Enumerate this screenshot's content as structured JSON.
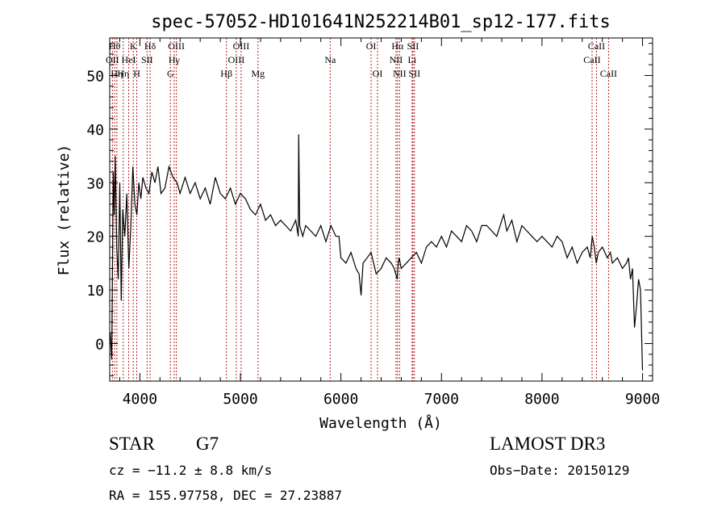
{
  "chart_data": {
    "type": "line",
    "title": "spec-57052-HD101641N252214B01_sp12-177.fits",
    "xlabel": "Wavelength (Å)",
    "ylabel": "Flux (relative)",
    "xlim": [
      3700,
      9100
    ],
    "ylim": [
      -7,
      57
    ],
    "xticks": [
      4000,
      5000,
      6000,
      7000,
      8000,
      9000
    ],
    "yticks": [
      0,
      10,
      20,
      30,
      40,
      50
    ],
    "grid": false,
    "line_color": "#000000",
    "marker_color": "#b22222",
    "series": [
      {
        "x": [
          3705,
          3720,
          3735,
          3745,
          3755,
          3770,
          3785,
          3800,
          3815,
          3830,
          3850,
          3870,
          3890,
          3910,
          3930,
          3950,
          3970,
          3990,
          4010,
          4030,
          4060,
          4090,
          4120,
          4150,
          4180,
          4210,
          4250,
          4290,
          4330,
          4370,
          4400,
          4450,
          4500,
          4550,
          4600,
          4650,
          4700,
          4750,
          4800,
          4850,
          4900,
          4950,
          5000,
          5050,
          5100,
          5150,
          5200,
          5250,
          5300,
          5350,
          5400,
          5450,
          5500,
          5550,
          5575,
          5580,
          5590,
          5620,
          5650,
          5700,
          5750,
          5800,
          5850,
          5900,
          5950,
          5980,
          6000,
          6050,
          6100,
          6150,
          6180,
          6200,
          6220,
          6260,
          6300,
          6350,
          6400,
          6450,
          6500,
          6530,
          6560,
          6570,
          6580,
          6600,
          6650,
          6700,
          6750,
          6800,
          6850,
          6900,
          6950,
          7000,
          7050,
          7100,
          7150,
          7200,
          7250,
          7300,
          7350,
          7400,
          7450,
          7500,
          7550,
          7600,
          7620,
          7650,
          7700,
          7750,
          7800,
          7850,
          7900,
          7950,
          8000,
          8050,
          8100,
          8150,
          8200,
          8250,
          8300,
          8350,
          8400,
          8450,
          8480,
          8500,
          8520,
          8540,
          8560,
          8600,
          8650,
          8680,
          8700,
          8750,
          8800,
          8840,
          8860,
          8880,
          8900,
          8920,
          8940,
          8960,
          8980,
          9000
        ],
        "y": [
          2,
          -3,
          32,
          24,
          35,
          18,
          12,
          30,
          8,
          25,
          20,
          28,
          14,
          22,
          33,
          26,
          24,
          30,
          27,
          31,
          29,
          28,
          32,
          30,
          33,
          28,
          29,
          33,
          31,
          30,
          28,
          31,
          28,
          30,
          27,
          29,
          26,
          31,
          28,
          27,
          29,
          26,
          28,
          27,
          25,
          24,
          26,
          23,
          24,
          22,
          23,
          22,
          21,
          23,
          20,
          39,
          22,
          20,
          22,
          21,
          20,
          22,
          19,
          22,
          20,
          20,
          16,
          15,
          17,
          14,
          13,
          9,
          15,
          16,
          17,
          13,
          14,
          16,
          15,
          14,
          12,
          15,
          16,
          14,
          15,
          16,
          17,
          15,
          18,
          19,
          18,
          20,
          18,
          21,
          20,
          19,
          22,
          21,
          19,
          22,
          22,
          21,
          20,
          23,
          24,
          21,
          23,
          19,
          22,
          21,
          20,
          19,
          20,
          19,
          18,
          20,
          19,
          16,
          18,
          15,
          17,
          18,
          16,
          20,
          18,
          15,
          17,
          18,
          16,
          17,
          15,
          16,
          14,
          15,
          16,
          12,
          14,
          3,
          7,
          12,
          10,
          -5
        ]
      }
    ],
    "lines": [
      {
        "x": 3727,
        "label": "OII",
        "row": 2
      },
      {
        "x": 3750,
        "label": "Hθ",
        "row": 1
      },
      {
        "x": 3771,
        "label": "Hη",
        "row": 3
      },
      {
        "x": 3835,
        "label": "Hη",
        "row": 3
      },
      {
        "x": 3889,
        "label": "HeI",
        "row": 2
      },
      {
        "x": 3934,
        "label": "K",
        "row": 1
      },
      {
        "x": 3969,
        "label": "H",
        "row": 3
      },
      {
        "x": 4072,
        "label": "SII",
        "row": 2
      },
      {
        "x": 4102,
        "label": "Hδ",
        "row": 1
      },
      {
        "x": 4304,
        "label": "G",
        "row": 3
      },
      {
        "x": 4341,
        "label": "Hγ",
        "row": 2
      },
      {
        "x": 4363,
        "label": "OIII",
        "row": 1
      },
      {
        "x": 4861,
        "label": "Hβ",
        "row": 3
      },
      {
        "x": 4959,
        "label": "OIII",
        "row": 2
      },
      {
        "x": 5007,
        "label": "OIII",
        "row": 1
      },
      {
        "x": 5175,
        "label": "Mg",
        "row": 3
      },
      {
        "x": 5893,
        "label": "Na",
        "row": 2
      },
      {
        "x": 6300,
        "label": "OI",
        "row": 1
      },
      {
        "x": 6364,
        "label": "OI",
        "row": 3
      },
      {
        "x": 6548,
        "label": "NII",
        "row": 2
      },
      {
        "x": 6563,
        "label": "Hα",
        "row": 1
      },
      {
        "x": 6583,
        "label": "NII",
        "row": 3
      },
      {
        "x": 6708,
        "label": "Li",
        "row": 2
      },
      {
        "x": 6716,
        "label": "SII",
        "row": 1
      },
      {
        "x": 6731,
        "label": "SII",
        "row": 3
      },
      {
        "x": 8498,
        "label": "CaII",
        "row": 2
      },
      {
        "x": 8542,
        "label": "CaII",
        "row": 1
      },
      {
        "x": 8662,
        "label": "CaII",
        "row": 3
      }
    ]
  },
  "info": {
    "class_label": "STAR",
    "subclass": "G7",
    "survey": "LAMOST DR3",
    "cz_text": "cz = −11.2 ± 8.8 km/s",
    "obs_date_text": "Obs−Date: 20150129",
    "radec_text": "RA = 155.97758, DEC =  27.23887"
  }
}
